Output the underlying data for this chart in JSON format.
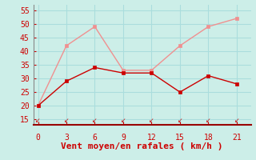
{
  "x": [
    0,
    3,
    6,
    9,
    12,
    15,
    18,
    21
  ],
  "y_rafales": [
    20,
    42,
    49,
    33,
    33,
    42,
    49,
    52
  ],
  "y_moyen": [
    20,
    29,
    34,
    32,
    32,
    25,
    31,
    28
  ],
  "line_color_rafales": "#f09090",
  "line_color_moyen": "#cc0000",
  "bg_color": "#cceee8",
  "grid_color": "#aadddd",
  "xlabel": "Vent moyen/en rafales ( km/h )",
  "xlabel_color": "#cc0000",
  "tick_color": "#cc0000",
  "axis_color": "#888888",
  "bottom_line_color": "#990000",
  "ylim": [
    13,
    57
  ],
  "xlim": [
    -0.5,
    22.5
  ],
  "yticks": [
    15,
    20,
    25,
    30,
    35,
    40,
    45,
    50,
    55
  ],
  "xticks": [
    0,
    3,
    6,
    9,
    12,
    15,
    18,
    21
  ],
  "xlabel_fontsize": 8,
  "tick_fontsize": 7
}
